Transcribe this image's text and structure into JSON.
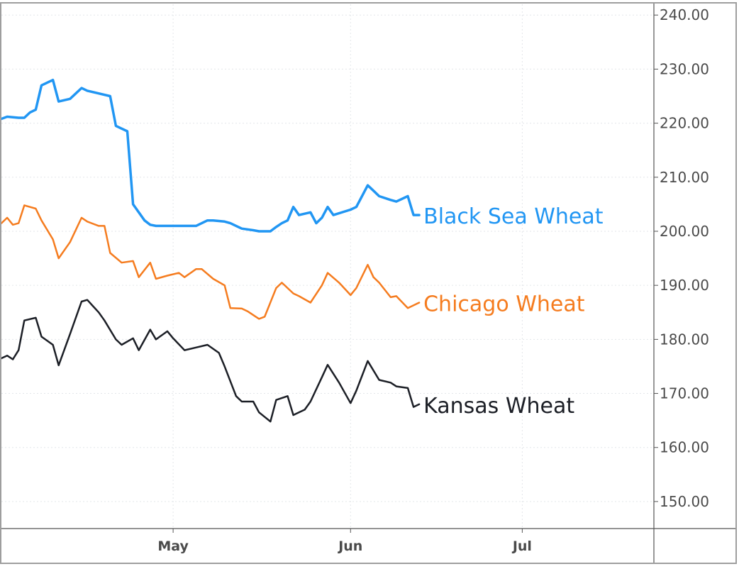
{
  "chart_data": {
    "type": "line",
    "title": "",
    "xlabel": "",
    "ylabel": "",
    "x_axis": {
      "type": "date",
      "range": [
        "2020-04-01",
        "2020-07-24"
      ],
      "tick_labels": [
        {
          "date": "2020-05-01",
          "label": "May"
        },
        {
          "date": "2020-06-01",
          "label": "Jun"
        },
        {
          "date": "2020-07-01",
          "label": "Jul"
        }
      ]
    },
    "y_axis": {
      "position": "right",
      "range": [
        145,
        242
      ],
      "ticks": [
        150,
        160,
        170,
        180,
        190,
        200,
        210,
        220,
        230,
        240
      ],
      "tick_labels": [
        "150.00",
        "160.00",
        "170.00",
        "180.00",
        "190.00",
        "200.00",
        "210.00",
        "220.00",
        "230.00",
        "240.00"
      ]
    },
    "grid": true,
    "legend": "none (series names labelled at line ends)",
    "series": [
      {
        "name": "Black Sea Wheat",
        "color": "#2196f3",
        "points": [
          [
            "2020-04-01",
            220.8
          ],
          [
            "2020-04-02",
            221.2
          ],
          [
            "2020-04-04",
            221.0
          ],
          [
            "2020-04-05",
            221.0
          ],
          [
            "2020-04-06",
            222.0
          ],
          [
            "2020-04-07",
            222.5
          ],
          [
            "2020-04-08",
            227.0
          ],
          [
            "2020-04-10",
            228.0
          ],
          [
            "2020-04-11",
            224.0
          ],
          [
            "2020-04-13",
            224.5
          ],
          [
            "2020-04-15",
            226.5
          ],
          [
            "2020-04-16",
            226.0
          ],
          [
            "2020-04-18",
            225.5
          ],
          [
            "2020-04-20",
            225.0
          ],
          [
            "2020-04-21",
            219.5
          ],
          [
            "2020-04-23",
            218.5
          ],
          [
            "2020-04-24",
            205.0
          ],
          [
            "2020-04-26",
            202.0
          ],
          [
            "2020-04-27",
            201.2
          ],
          [
            "2020-04-28",
            201.0
          ],
          [
            "2020-04-30",
            201.0
          ],
          [
            "2020-05-01",
            201.0
          ],
          [
            "2020-05-04",
            201.0
          ],
          [
            "2020-05-05",
            201.0
          ],
          [
            "2020-05-07",
            202.0
          ],
          [
            "2020-05-08",
            202.0
          ],
          [
            "2020-05-10",
            201.8
          ],
          [
            "2020-05-11",
            201.5
          ],
          [
            "2020-05-12",
            201.0
          ],
          [
            "2020-05-13",
            200.5
          ],
          [
            "2020-05-15",
            200.2
          ],
          [
            "2020-05-16",
            200.0
          ],
          [
            "2020-05-18",
            200.0
          ],
          [
            "2020-05-19",
            200.8
          ],
          [
            "2020-05-20",
            201.5
          ],
          [
            "2020-05-21",
            202.0
          ],
          [
            "2020-05-22",
            204.5
          ],
          [
            "2020-05-23",
            203.0
          ],
          [
            "2020-05-25",
            203.5
          ],
          [
            "2020-05-26",
            201.5
          ],
          [
            "2020-05-27",
            202.5
          ],
          [
            "2020-05-28",
            204.5
          ],
          [
            "2020-05-29",
            203.0
          ],
          [
            "2020-06-01",
            204.0
          ],
          [
            "2020-06-02",
            204.5
          ],
          [
            "2020-06-04",
            208.5
          ],
          [
            "2020-06-05",
            207.5
          ],
          [
            "2020-06-06",
            206.5
          ],
          [
            "2020-06-08",
            205.8
          ],
          [
            "2020-06-09",
            205.5
          ],
          [
            "2020-06-11",
            206.5
          ],
          [
            "2020-06-12",
            203.0
          ],
          [
            "2020-06-13",
            203.0
          ]
        ]
      },
      {
        "name": "Chicago Wheat",
        "color": "#f57c1f",
        "points": [
          [
            "2020-04-01",
            201.5
          ],
          [
            "2020-04-02",
            202.5
          ],
          [
            "2020-04-03",
            201.2
          ],
          [
            "2020-04-04",
            201.5
          ],
          [
            "2020-04-05",
            204.8
          ],
          [
            "2020-04-07",
            204.2
          ],
          [
            "2020-04-08",
            202.0
          ],
          [
            "2020-04-10",
            198.5
          ],
          [
            "2020-04-11",
            195.0
          ],
          [
            "2020-04-13",
            198.0
          ],
          [
            "2020-04-15",
            202.5
          ],
          [
            "2020-04-16",
            201.8
          ],
          [
            "2020-04-18",
            201.0
          ],
          [
            "2020-04-19",
            201.0
          ],
          [
            "2020-04-20",
            196.0
          ],
          [
            "2020-04-22",
            194.2
          ],
          [
            "2020-04-24",
            194.5
          ],
          [
            "2020-04-25",
            191.5
          ],
          [
            "2020-04-27",
            194.2
          ],
          [
            "2020-04-28",
            191.2
          ],
          [
            "2020-04-30",
            191.8
          ],
          [
            "2020-05-02",
            192.3
          ],
          [
            "2020-05-03",
            191.5
          ],
          [
            "2020-05-05",
            193.0
          ],
          [
            "2020-05-06",
            193.0
          ],
          [
            "2020-05-08",
            191.2
          ],
          [
            "2020-05-10",
            190.0
          ],
          [
            "2020-05-11",
            185.8
          ],
          [
            "2020-05-13",
            185.7
          ],
          [
            "2020-05-14",
            185.2
          ],
          [
            "2020-05-16",
            183.8
          ],
          [
            "2020-05-17",
            184.2
          ],
          [
            "2020-05-19",
            189.5
          ],
          [
            "2020-05-20",
            190.5
          ],
          [
            "2020-05-22",
            188.5
          ],
          [
            "2020-05-23",
            188.0
          ],
          [
            "2020-05-25",
            186.8
          ],
          [
            "2020-05-27",
            190.0
          ],
          [
            "2020-05-28",
            192.3
          ],
          [
            "2020-05-30",
            190.5
          ],
          [
            "2020-06-01",
            188.2
          ],
          [
            "2020-06-02",
            189.5
          ],
          [
            "2020-06-04",
            193.8
          ],
          [
            "2020-06-05",
            191.5
          ],
          [
            "2020-06-06",
            190.5
          ],
          [
            "2020-06-08",
            187.8
          ],
          [
            "2020-06-09",
            188.0
          ],
          [
            "2020-06-11",
            185.8
          ],
          [
            "2020-06-13",
            186.8
          ]
        ]
      },
      {
        "name": "Kansas Wheat",
        "color": "#1c1f26",
        "points": [
          [
            "2020-04-01",
            176.5
          ],
          [
            "2020-04-02",
            177.0
          ],
          [
            "2020-04-03",
            176.3
          ],
          [
            "2020-04-04",
            178.0
          ],
          [
            "2020-04-05",
            183.5
          ],
          [
            "2020-04-07",
            184.0
          ],
          [
            "2020-04-08",
            180.5
          ],
          [
            "2020-04-10",
            179.0
          ],
          [
            "2020-04-11",
            175.2
          ],
          [
            "2020-04-13",
            181.0
          ],
          [
            "2020-04-15",
            187.0
          ],
          [
            "2020-04-16",
            187.3
          ],
          [
            "2020-04-18",
            185.0
          ],
          [
            "2020-04-19",
            183.5
          ],
          [
            "2020-04-21",
            180.0
          ],
          [
            "2020-04-22",
            179.0
          ],
          [
            "2020-04-24",
            180.2
          ],
          [
            "2020-04-25",
            178.0
          ],
          [
            "2020-04-27",
            181.8
          ],
          [
            "2020-04-28",
            180.0
          ],
          [
            "2020-04-30",
            181.5
          ],
          [
            "2020-05-01",
            180.2
          ],
          [
            "2020-05-03",
            178.0
          ],
          [
            "2020-05-05",
            178.5
          ],
          [
            "2020-05-07",
            179.0
          ],
          [
            "2020-05-09",
            177.5
          ],
          [
            "2020-05-10",
            175.0
          ],
          [
            "2020-05-12",
            169.5
          ],
          [
            "2020-05-13",
            168.5
          ],
          [
            "2020-05-15",
            168.5
          ],
          [
            "2020-05-16",
            166.5
          ],
          [
            "2020-05-18",
            164.8
          ],
          [
            "2020-05-19",
            168.8
          ],
          [
            "2020-05-21",
            169.5
          ],
          [
            "2020-05-22",
            166.0
          ],
          [
            "2020-05-24",
            167.0
          ],
          [
            "2020-05-25",
            168.5
          ],
          [
            "2020-05-27",
            173.0
          ],
          [
            "2020-05-28",
            175.3
          ],
          [
            "2020-05-30",
            172.0
          ],
          [
            "2020-06-01",
            168.2
          ],
          [
            "2020-06-02",
            170.5
          ],
          [
            "2020-06-04",
            176.0
          ],
          [
            "2020-06-06",
            172.5
          ],
          [
            "2020-06-08",
            172.0
          ],
          [
            "2020-06-09",
            171.3
          ],
          [
            "2020-06-11",
            171.0
          ],
          [
            "2020-06-12",
            167.5
          ],
          [
            "2020-06-13",
            168.0
          ]
        ]
      }
    ]
  }
}
